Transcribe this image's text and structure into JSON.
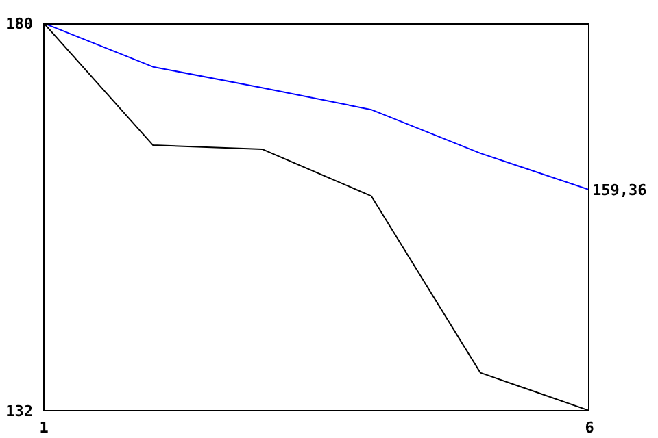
{
  "chart_data": {
    "type": "line",
    "x": [
      1,
      2,
      3,
      4,
      5,
      6
    ],
    "series": [
      {
        "color": "#0000ff",
        "values": [
          180,
          174.6,
          172,
          169.3,
          163.9,
          159.36
        ]
      },
      {
        "color": "#000000",
        "values": [
          180,
          164.9,
          164.4,
          158.6,
          136.7,
          132
        ]
      }
    ],
    "xlim": [
      1,
      6
    ],
    "xticks": [
      1,
      6
    ],
    "ylim": [
      132,
      180
    ],
    "yticks": [
      132,
      180
    ],
    "grid": false,
    "marker": "none",
    "line_style": "solid",
    "annotations": [
      {
        "text": "159,36",
        "x": 6,
        "y": 159.36
      }
    ]
  }
}
